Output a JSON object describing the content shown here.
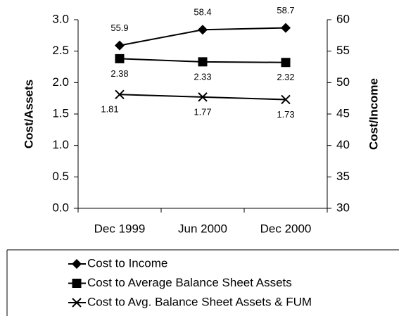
{
  "chart_data": {
    "type": "line",
    "y_label": "Cost/Assets",
    "y2_label": "Cost/Income",
    "categories": [
      "Dec 1999",
      "Jun 2000",
      "Dec 2000"
    ],
    "ylim": [
      0,
      3
    ],
    "yticks": [
      {
        "value": 0,
        "label": "0.0"
      },
      0.5,
      {
        "value": 1,
        "label": "1.0"
      },
      1.5,
      {
        "value": 2,
        "label": "2.0"
      },
      2.5,
      {
        "value": 3,
        "label": "3.0"
      }
    ],
    "y2lim": [
      30,
      60
    ],
    "y2ticks": [
      30,
      35,
      40,
      45,
      50,
      55,
      60
    ],
    "series": [
      {
        "name": "Cost to Income",
        "color": "#000000",
        "marker": "diamond",
        "axis": "y2",
        "values": [
          55.9,
          58.4,
          58.7
        ]
      },
      {
        "name": "Cost to Average Balance Sheet Assets",
        "color": "#000000",
        "marker": "square",
        "values": [
          2.38,
          2.33,
          2.32
        ]
      },
      {
        "name": "Cost to Avg. Balance Sheet Assets & FUM",
        "color": "#000000",
        "marker": "x",
        "values": [
          1.81,
          1.77,
          1.73
        ]
      }
    ]
  }
}
